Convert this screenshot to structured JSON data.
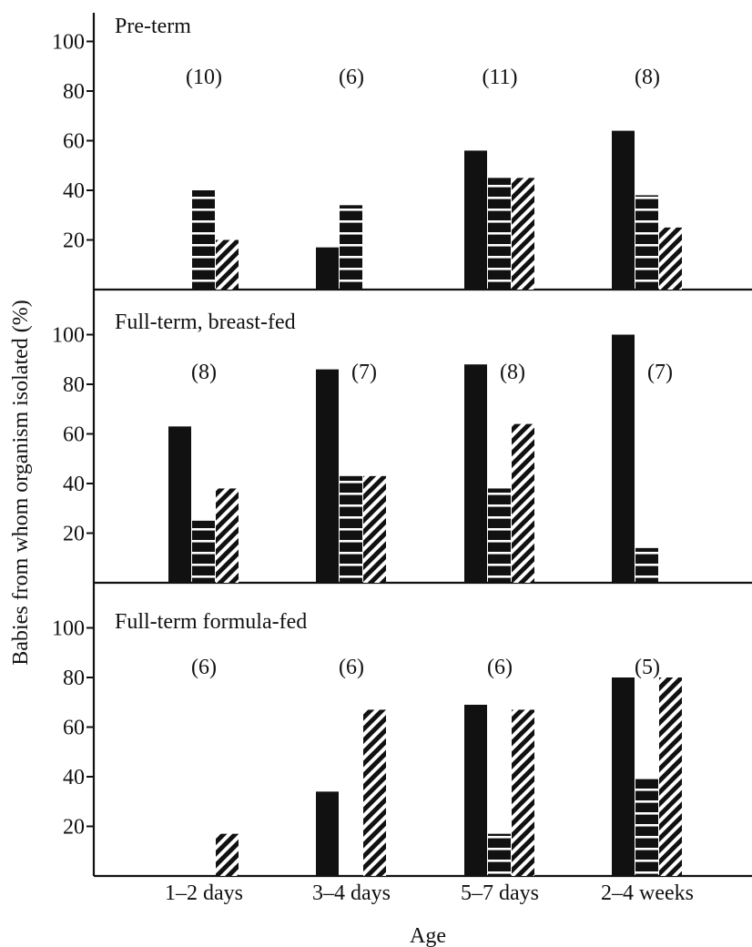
{
  "chart_data": {
    "type": "bar",
    "ylabel": "Babies from whom organism isolated (%)",
    "xlabel": "Age",
    "categories": [
      "1–2 days",
      "3–4 days",
      "5–7 days",
      "2–4 weeks"
    ],
    "yticks": [
      20,
      40,
      60,
      80,
      100
    ],
    "ylim": [
      0,
      110
    ],
    "series_styles": [
      "solid",
      "horizontal-lines",
      "diagonal-hatch"
    ],
    "colors": {
      "ink": "#111111",
      "background": "#ffffff"
    },
    "panels": [
      {
        "title": "Pre-term",
        "counts": [
          "(10)",
          "(6)",
          "(11)",
          "(8)"
        ],
        "values": [
          [
            0,
            40,
            20
          ],
          [
            17,
            34,
            0
          ],
          [
            56,
            45,
            45
          ],
          [
            64,
            38,
            25
          ]
        ]
      },
      {
        "title": "Full-term, breast-fed",
        "counts": [
          "(8)",
          "(7)",
          "(8)",
          "(7)"
        ],
        "values": [
          [
            63,
            25,
            38
          ],
          [
            86,
            43,
            43
          ],
          [
            88,
            38,
            64
          ],
          [
            100,
            14,
            0
          ]
        ]
      },
      {
        "title": "Full-term formula-fed",
        "counts": [
          "(6)",
          "(6)",
          "(6)",
          "(5)"
        ],
        "values": [
          [
            0,
            0,
            17
          ],
          [
            34,
            0,
            67
          ],
          [
            69,
            17,
            67
          ],
          [
            80,
            40,
            80
          ]
        ]
      }
    ]
  }
}
